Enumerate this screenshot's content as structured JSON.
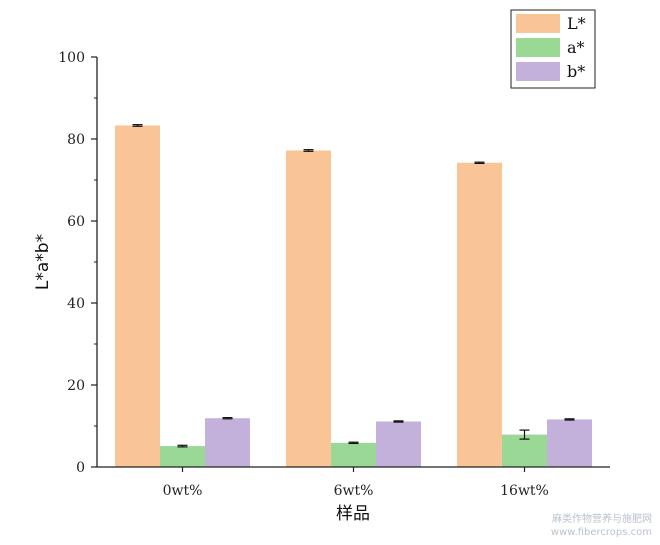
{
  "chart_data": {
    "type": "bar",
    "categories": [
      "0wt%",
      "6wt%",
      "16wt%"
    ],
    "series": [
      {
        "name": "L*",
        "color": "#f9c597",
        "values": [
          83.3,
          77.2,
          74.2
        ],
        "errors": [
          0.2,
          0.2,
          0.15
        ]
      },
      {
        "name": "a*",
        "color": "#9ad995",
        "values": [
          5.1,
          5.9,
          7.9
        ],
        "errors": [
          0.2,
          0.15,
          1.1
        ]
      },
      {
        "name": "b*",
        "color": "#c3b1dc",
        "values": [
          11.9,
          11.1,
          11.6
        ],
        "errors": [
          0.15,
          0.15,
          0.15
        ]
      }
    ],
    "title": "",
    "xlabel": "样品",
    "ylabel": "L*a*b*",
    "ylim": [
      0,
      100
    ],
    "yticks": [
      0,
      20,
      40,
      60,
      80,
      100
    ],
    "grid": false,
    "legend_position": "top-right"
  },
  "watermark": {
    "line1": "麻类作物营养与施肥网",
    "line2": "www.fibercrops.com"
  }
}
